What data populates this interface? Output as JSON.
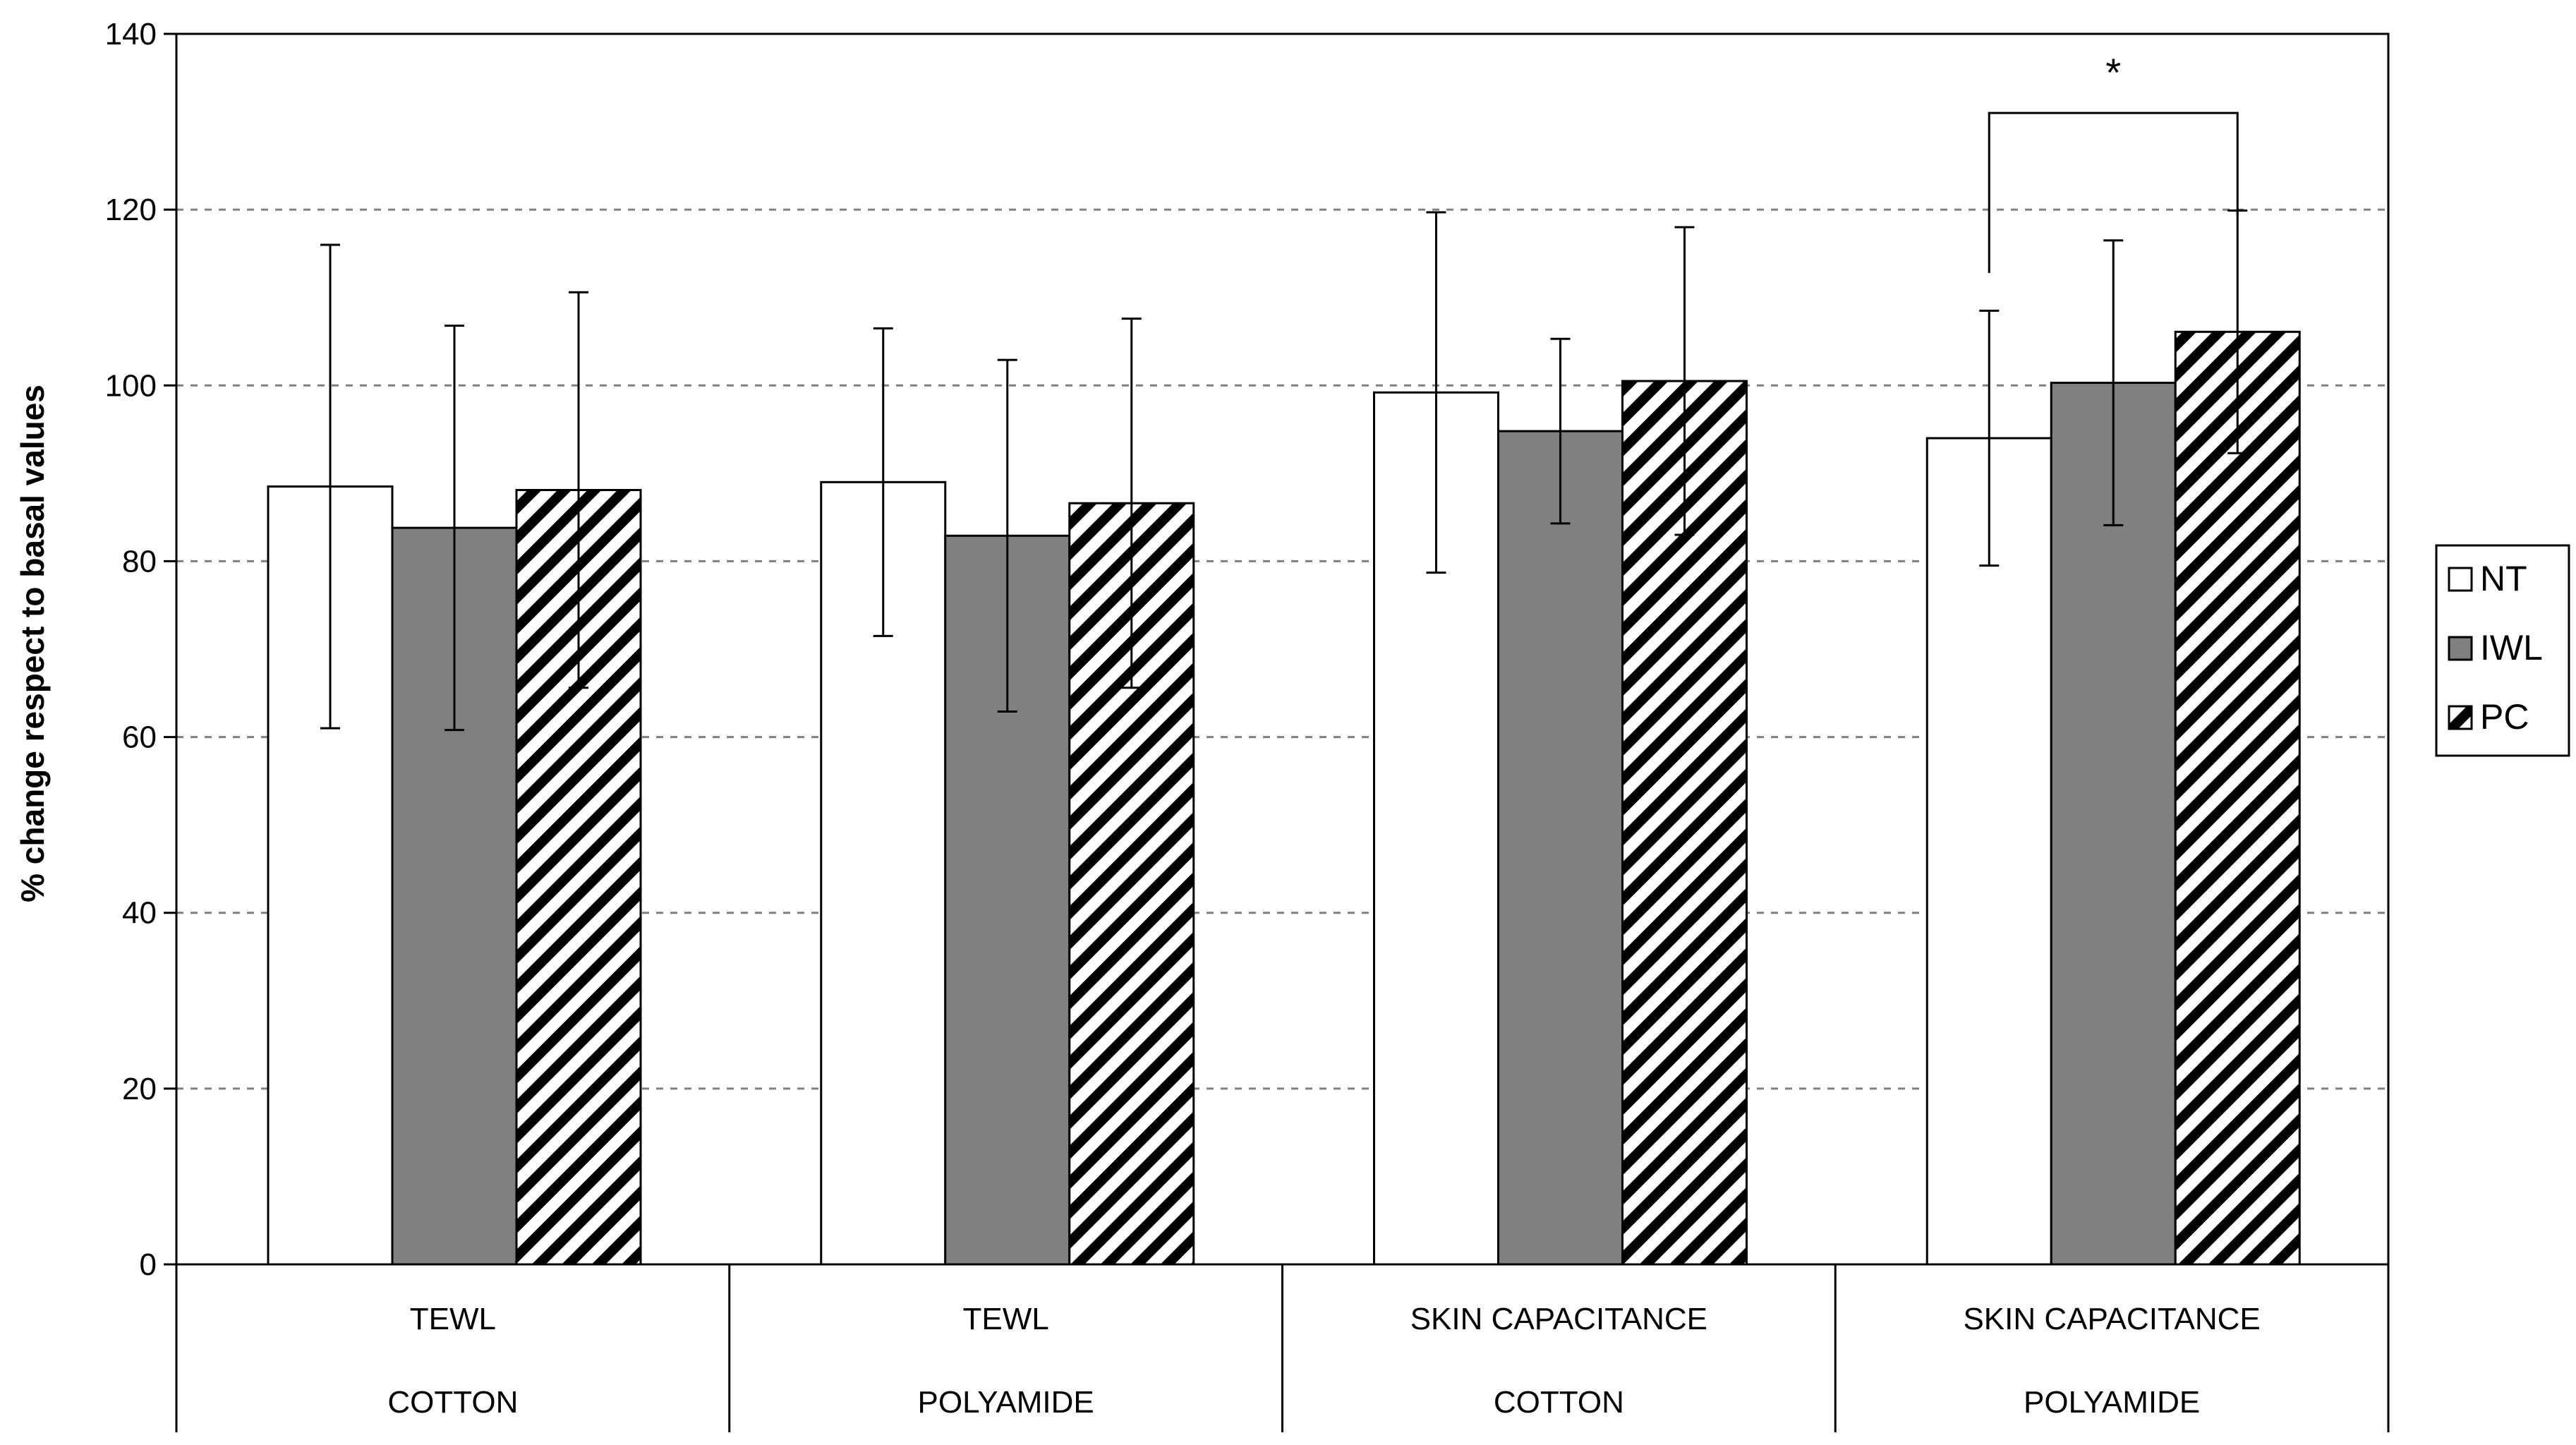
{
  "chart_data": {
    "type": "bar",
    "title": "",
    "ylabel": "% change respect to basal values",
    "ylim": [
      0,
      140
    ],
    "ytick_step": 20,
    "yticks": [
      "0",
      "20",
      "40",
      "60",
      "80",
      "100",
      "120",
      "140"
    ],
    "grid": "horizontal dashed",
    "legend_position": "right",
    "categories": [
      {
        "measure": "TEWL",
        "fabric": "COTTON"
      },
      {
        "measure": "TEWL",
        "fabric": "POLYAMIDE"
      },
      {
        "measure": "SKIN CAPACITANCE",
        "fabric": "COTTON"
      },
      {
        "measure": "SKIN CAPACITANCE",
        "fabric": "POLYAMIDE"
      }
    ],
    "series": [
      {
        "name": "NT",
        "fill": "white",
        "values": [
          88.5,
          89.0,
          99.2,
          94.0
        ],
        "error": [
          27.5,
          17.5,
          20.5,
          14.5
        ]
      },
      {
        "name": "IWL",
        "fill": "#808080",
        "values": [
          83.8,
          82.9,
          94.8,
          100.3
        ],
        "error": [
          23.0,
          20.0,
          10.5,
          16.2
        ]
      },
      {
        "name": "PC",
        "fill": "hatched",
        "values": [
          88.1,
          86.6,
          100.5,
          106.1
        ],
        "error": [
          22.5,
          21.0,
          17.5,
          13.8
        ]
      }
    ],
    "annotation": {
      "text": "*",
      "between": [
        "NT",
        "PC"
      ],
      "category_index": 3,
      "y": 131
    }
  }
}
